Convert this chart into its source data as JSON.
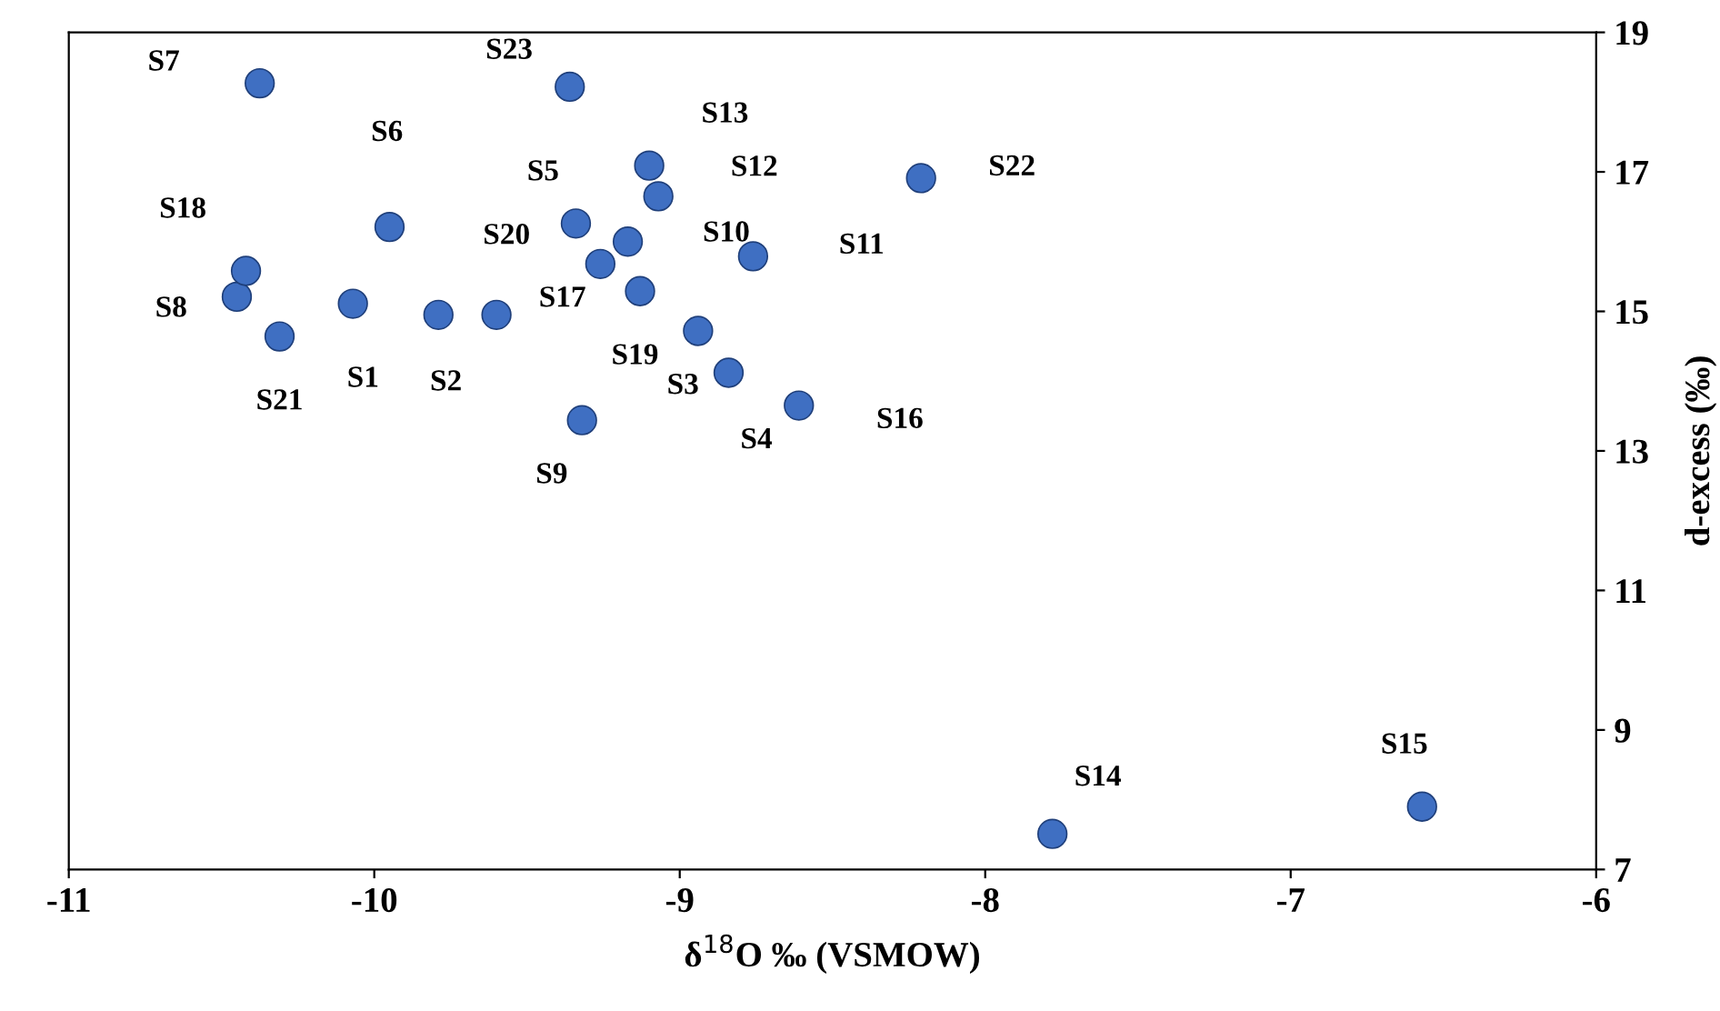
{
  "chart_data": {
    "type": "scatter",
    "xlabel": "δ$^{18}$O ‰ (VSMOW)",
    "ylabel": "d-excess (‰)",
    "x": [
      -10.07,
      -9.79,
      -8.94,
      -8.84,
      -9.34,
      -9.95,
      -10.375,
      -10.45,
      -9.32,
      -9.17,
      -8.76,
      -9.07,
      -9.1,
      -7.78,
      -6.57,
      -8.61,
      -9.26,
      -10.42,
      -9.13,
      -9.6,
      -10.31,
      -8.21,
      -9.36
    ],
    "values": [
      15.11,
      14.95,
      14.72,
      14.12,
      16.26,
      16.21,
      18.27,
      15.21,
      13.44,
      16.0,
      15.79,
      16.65,
      17.09,
      7.51,
      7.9,
      13.65,
      15.68,
      15.58,
      15.29,
      14.95,
      14.64,
      16.91,
      18.22
    ],
    "color": "#3f6fc2",
    "marker": "circle",
    "annotations": [
      {
        "text": "S1",
        "x": -10.07,
        "y": 15.11
      },
      {
        "text": "S2",
        "x": -9.79,
        "y": 14.95
      },
      {
        "text": "S3",
        "x": -8.94,
        "y": 14.72
      },
      {
        "text": "S4",
        "x": -8.84,
        "y": 14.12
      },
      {
        "text": "S5",
        "x": -9.34,
        "y": 16.26
      },
      {
        "text": "S6",
        "x": -9.95,
        "y": 16.21
      },
      {
        "text": "S7",
        "x": -10.375,
        "y": 18.27
      },
      {
        "text": "S8",
        "x": -10.45,
        "y": 15.21
      },
      {
        "text": "S9",
        "x": -9.32,
        "y": 13.44
      },
      {
        "text": "S10",
        "x": -9.17,
        "y": 16.0
      },
      {
        "text": "S11",
        "x": -8.76,
        "y": 15.79
      },
      {
        "text": "S12",
        "x": -9.07,
        "y": 16.65
      },
      {
        "text": "S13",
        "x": -9.1,
        "y": 17.09
      },
      {
        "text": "S14",
        "x": -7.78,
        "y": 7.51
      },
      {
        "text": "S15",
        "x": -6.57,
        "y": 7.9
      },
      {
        "text": "S16",
        "x": -8.61,
        "y": 13.65
      },
      {
        "text": "S17",
        "x": -9.26,
        "y": 15.68
      },
      {
        "text": "S18",
        "x": -10.42,
        "y": 15.58
      },
      {
        "text": "S19",
        "x": -9.13,
        "y": 15.29
      },
      {
        "text": "S20",
        "x": -9.6,
        "y": 14.95
      },
      {
        "text": "S21",
        "x": -10.31,
        "y": 14.64
      },
      {
        "text": "S22",
        "x": -8.21,
        "y": 16.91
      },
      {
        "text": "S23",
        "x": -9.36,
        "y": 18.22
      }
    ],
    "xlim": [
      -11,
      -6
    ],
    "xticks": [
      -11,
      -10,
      -9,
      -8,
      -7,
      -6
    ],
    "ylim": [
      7,
      19
    ],
    "yticks": [
      7,
      9,
      11,
      13,
      15,
      17,
      19
    ],
    "grid": false
  }
}
